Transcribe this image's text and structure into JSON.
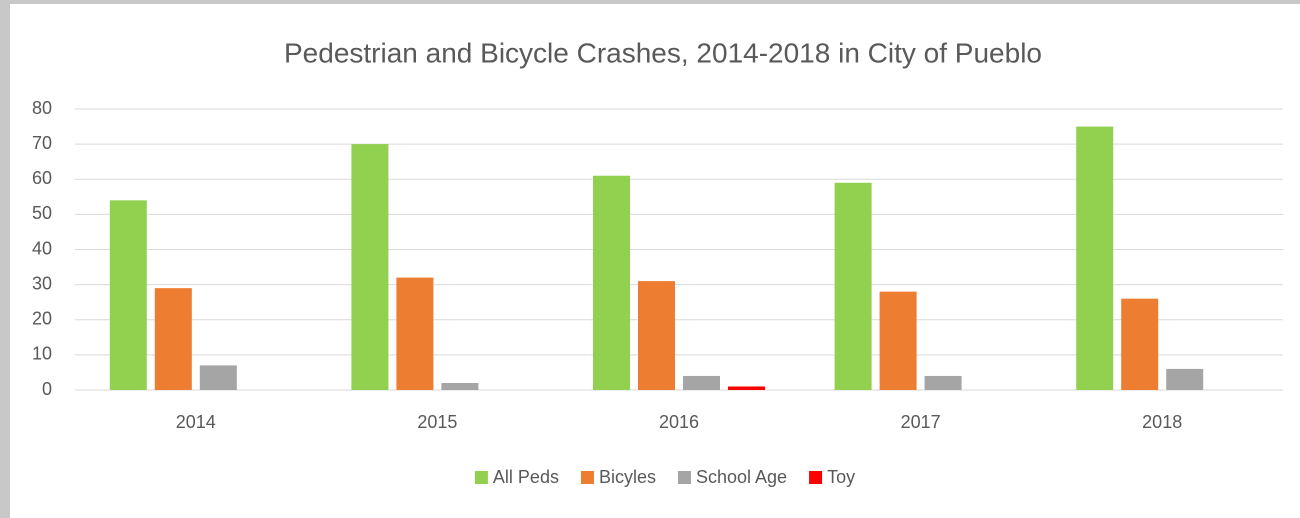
{
  "chart_data": {
    "type": "bar",
    "title": "Pedestrian and Bicycle Crashes, 2014-2018 in City of Pueblo",
    "categories": [
      "2014",
      "2015",
      "2016",
      "2017",
      "2018"
    ],
    "series": [
      {
        "name": "All Peds",
        "color": "#92d050",
        "values": [
          54,
          70,
          61,
          59,
          75
        ]
      },
      {
        "name": "Bicyles",
        "color": "#ed7d31",
        "values": [
          29,
          32,
          31,
          28,
          26
        ]
      },
      {
        "name": "School Age",
        "color": "#a5a5a5",
        "values": [
          7,
          2,
          4,
          4,
          6
        ]
      },
      {
        "name": "Toy",
        "color": "#ff0000",
        "values": [
          0,
          0,
          1,
          0,
          0
        ]
      }
    ],
    "ylim": [
      0,
      80
    ],
    "yticks": [
      0,
      10,
      20,
      30,
      40,
      50,
      60,
      70,
      80
    ],
    "grid": true,
    "legend": "bottom"
  }
}
